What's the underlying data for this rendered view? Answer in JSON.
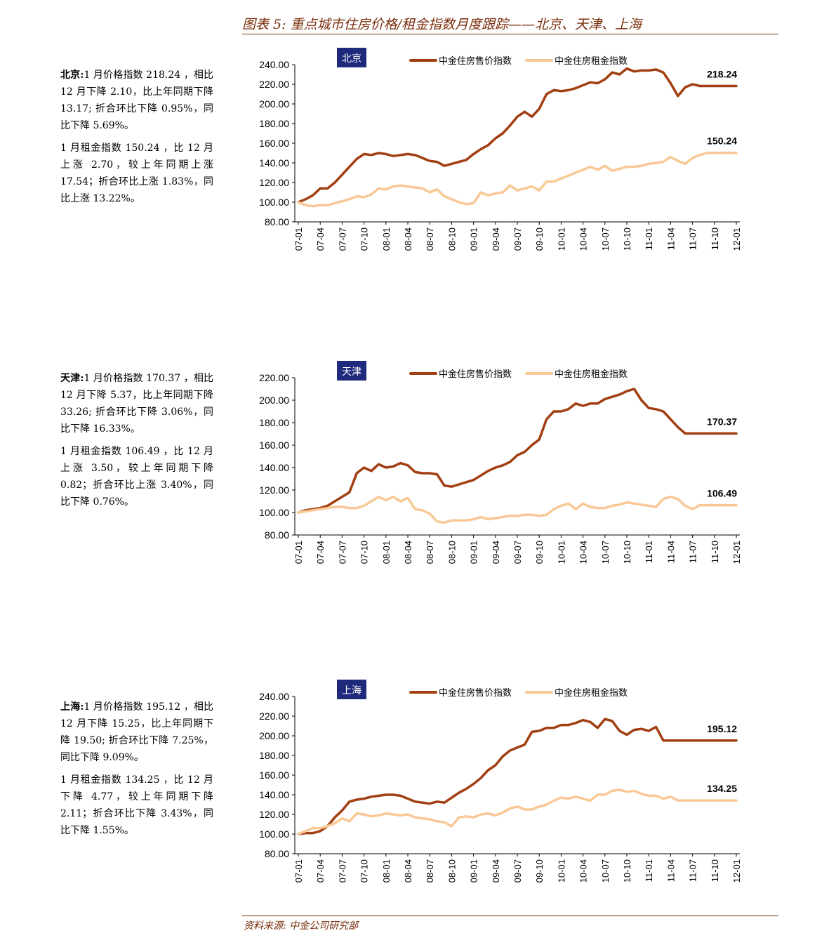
{
  "header": {
    "title": "图表 5: 重点城市住房价格/租金指数月度跟踪——北京、天津、上海"
  },
  "footer": {
    "source": "资料来源: 中金公司研究部"
  },
  "colors": {
    "price": "#a23f12",
    "rent": "#f9c896",
    "accent": "#7a2e0c",
    "badge_bg": "#1f2a7c"
  },
  "notes": [
    {
      "city_label": "北京:",
      "price_text": "1 月价格指数 218.24 ，相比 12 月下降 2.10，比上年同期下降 13.17; 折合环比下降 0.95%，同比下降 5.69%。",
      "rent_text": "1 月租金指数 150.24 ，比 12 月上涨 2.70，较上年同期上涨 17.54；折合环比上涨 1.83%，同比上涨 13.22%。"
    },
    {
      "city_label": "天津:",
      "price_text": "1 月价格指数 170.37 ，相比 12 月下降 5.37，比上年同期下降 33.26; 折合环比下降 3.06%，同比下降 16.33%。",
      "rent_text": "1 月租金指数 106.49 ，比 12 月上涨 3.50，较上年同期下降 0.82；折合环比上涨 3.40%，同比下降 0.76%。"
    },
    {
      "city_label": "上海:",
      "price_text": "1 月价格指数 195.12 ，相比 12 月下降 15.25，比上年同期下降 19.50; 折合环比下降 7.25%，同比下降 9.09%。",
      "rent_text": "1 月租金指数 134.25 ，比 12 月下降 4.77，较上年同期下降 2.11；折合环比下降 3.43%，同比下降 1.55%。"
    }
  ],
  "chart_data": [
    {
      "type": "line",
      "badge": "北京",
      "legend_position": "top",
      "x": [
        "07-01",
        "07-02",
        "07-03",
        "07-04",
        "07-05",
        "07-06",
        "07-07",
        "07-08",
        "07-09",
        "07-10",
        "07-11",
        "07-12",
        "08-01",
        "08-02",
        "08-03",
        "08-04",
        "08-05",
        "08-06",
        "08-07",
        "08-08",
        "08-09",
        "08-10",
        "08-11",
        "08-12",
        "09-01",
        "09-02",
        "09-03",
        "09-04",
        "09-05",
        "09-06",
        "09-07",
        "09-08",
        "09-09",
        "09-10",
        "09-11",
        "09-12",
        "10-01",
        "10-02",
        "10-03",
        "10-04",
        "10-05",
        "10-06",
        "10-07",
        "10-08",
        "10-09",
        "10-10",
        "10-11",
        "10-12",
        "11-01",
        "11-02",
        "11-03",
        "11-04",
        "11-05",
        "11-06",
        "11-07",
        "11-08",
        "11-09",
        "11-10",
        "11-11",
        "11-12",
        "12-01"
      ],
      "xticks": [
        "07-01",
        "07-04",
        "07-07",
        "07-10",
        "08-01",
        "08-04",
        "08-07",
        "08-10",
        "09-01",
        "09-04",
        "09-07",
        "09-10",
        "10-01",
        "10-04",
        "10-07",
        "10-10",
        "11-01",
        "11-04",
        "11-07",
        "11-10",
        "12-01"
      ],
      "ylim": [
        80,
        240
      ],
      "ystep": 20,
      "series": [
        {
          "name": "中金住房售价指数",
          "end_label": "218.24",
          "values": [
            100,
            103,
            107,
            114,
            114,
            120,
            128,
            136,
            144,
            149,
            148,
            150,
            149,
            147,
            148,
            149,
            148,
            145,
            142,
            141,
            137,
            139,
            141,
            143,
            149,
            154,
            158,
            165,
            170,
            178,
            187,
            192,
            187,
            195,
            210,
            214,
            213,
            214,
            216,
            219,
            222,
            221,
            225,
            232,
            230,
            236,
            233,
            234,
            234,
            235,
            232,
            221,
            208,
            217,
            220,
            218.24,
            218.24,
            218.24,
            218.24,
            218.24,
            218.24
          ]
        },
        {
          "name": "中金住房租金指数",
          "end_label": "150.24",
          "values": [
            100,
            97,
            96,
            97,
            97,
            99,
            101,
            103,
            106,
            105,
            108,
            114,
            113,
            116,
            117,
            116,
            115,
            114,
            110,
            113,
            106,
            103,
            100,
            98,
            99,
            110,
            107,
            109,
            110,
            117,
            112,
            114,
            116,
            112,
            121,
            121,
            124,
            127,
            130,
            133,
            136,
            133,
            137,
            132,
            134,
            136,
            136,
            137,
            139,
            140,
            141,
            146,
            142,
            139,
            145,
            148,
            150.24,
            150.24,
            150.24,
            150.24,
            150.24
          ]
        }
      ]
    },
    {
      "type": "line",
      "badge": "天津",
      "legend_position": "top",
      "x": [
        "07-01",
        "07-02",
        "07-03",
        "07-04",
        "07-05",
        "07-06",
        "07-07",
        "07-08",
        "07-09",
        "07-10",
        "07-11",
        "07-12",
        "08-01",
        "08-02",
        "08-03",
        "08-04",
        "08-05",
        "08-06",
        "08-07",
        "08-08",
        "08-09",
        "08-10",
        "08-11",
        "08-12",
        "09-01",
        "09-02",
        "09-03",
        "09-04",
        "09-05",
        "09-06",
        "09-07",
        "09-08",
        "09-09",
        "09-10",
        "09-11",
        "09-12",
        "10-01",
        "10-02",
        "10-03",
        "10-04",
        "10-05",
        "10-06",
        "10-07",
        "10-08",
        "10-09",
        "10-10",
        "10-11",
        "10-12",
        "11-01",
        "11-02",
        "11-03",
        "11-04",
        "11-05",
        "11-06",
        "11-07",
        "11-08",
        "11-09",
        "11-10",
        "11-11",
        "11-12",
        "12-01"
      ],
      "xticks": [
        "07-01",
        "07-04",
        "07-07",
        "07-10",
        "08-01",
        "08-04",
        "08-07",
        "08-10",
        "09-01",
        "09-04",
        "09-07",
        "09-10",
        "10-01",
        "10-04",
        "10-07",
        "10-10",
        "11-01",
        "11-04",
        "11-07",
        "11-10",
        "12-01"
      ],
      "ylim": [
        80,
        220
      ],
      "ystep": 20,
      "series": [
        {
          "name": "中金住房售价指数",
          "end_label": "170.37",
          "values": [
            100,
            102,
            103,
            104,
            106,
            110,
            114,
            118,
            135,
            140,
            137,
            143,
            140,
            141,
            144,
            142,
            136,
            135,
            135,
            134,
            124,
            123,
            125,
            127,
            129,
            133,
            137,
            140,
            142,
            145,
            151,
            154,
            160,
            165,
            183,
            190,
            190,
            192,
            197,
            195,
            197,
            197,
            201,
            203,
            205,
            208,
            210,
            200,
            193,
            192,
            190,
            183,
            176,
            170.37,
            170.37,
            170.37,
            170.37,
            170.37,
            170.37,
            170.37,
            170.37
          ]
        },
        {
          "name": "中金住房租金指数",
          "end_label": "106.49",
          "values": [
            100,
            101,
            102,
            103,
            104,
            105,
            105,
            104,
            104,
            106,
            110,
            114,
            111,
            114,
            110,
            113,
            103,
            102,
            99,
            92,
            91,
            93,
            93,
            93,
            94,
            96,
            94,
            95,
            96,
            97,
            97,
            98,
            98,
            97,
            98,
            103,
            106,
            108,
            103,
            108,
            105,
            104,
            104,
            106,
            107,
            109,
            108,
            107,
            106,
            105,
            112,
            114,
            112,
            106,
            103,
            106.49,
            106.49,
            106.49,
            106.49,
            106.49,
            106.49
          ]
        }
      ]
    },
    {
      "type": "line",
      "badge": "上海",
      "legend_position": "top",
      "x": [
        "07-01",
        "07-02",
        "07-03",
        "07-04",
        "07-05",
        "07-06",
        "07-07",
        "07-08",
        "07-09",
        "07-10",
        "07-11",
        "07-12",
        "08-01",
        "08-02",
        "08-03",
        "08-04",
        "08-05",
        "08-06",
        "08-07",
        "08-08",
        "08-09",
        "08-10",
        "08-11",
        "08-12",
        "09-01",
        "09-02",
        "09-03",
        "09-04",
        "09-05",
        "09-06",
        "09-07",
        "09-08",
        "09-09",
        "09-10",
        "09-11",
        "09-12",
        "10-01",
        "10-02",
        "10-03",
        "10-04",
        "10-05",
        "10-06",
        "10-07",
        "10-08",
        "10-09",
        "10-10",
        "10-11",
        "10-12",
        "11-01",
        "11-02",
        "11-03",
        "11-04",
        "11-05",
        "11-06",
        "11-07",
        "11-08",
        "11-09",
        "11-10",
        "11-11",
        "11-12",
        "12-01"
      ],
      "xticks": [
        "07-01",
        "07-04",
        "07-07",
        "07-10",
        "08-01",
        "08-04",
        "08-07",
        "08-10",
        "09-01",
        "09-04",
        "09-07",
        "09-10",
        "10-01",
        "10-04",
        "10-07",
        "10-10",
        "11-01",
        "11-04",
        "11-07",
        "11-10",
        "12-01"
      ],
      "ylim": [
        80,
        240
      ],
      "ystep": 20,
      "series": [
        {
          "name": "中金住房售价指数",
          "end_label": "195.12",
          "values": [
            100,
            101,
            101,
            103,
            108,
            117,
            124,
            133,
            135,
            136,
            138,
            139,
            140,
            140,
            139,
            136,
            133,
            132,
            131,
            133,
            132,
            137,
            142,
            146,
            151,
            157,
            165,
            170,
            179,
            185,
            188,
            191,
            204,
            205,
            208,
            208,
            211,
            211,
            213,
            216,
            214,
            208,
            217,
            215,
            205,
            201,
            206,
            207,
            205,
            209,
            195.12,
            195.12,
            195.12,
            195.12,
            195.12,
            195.12,
            195.12,
            195.12,
            195.12,
            195.12,
            195.12
          ]
        },
        {
          "name": "中金住房租金指数",
          "end_label": "134.25",
          "values": [
            100,
            103,
            106,
            106,
            108,
            111,
            116,
            113,
            121,
            120,
            118,
            119,
            121,
            120,
            119,
            120,
            117,
            116,
            115,
            113,
            112,
            108,
            117,
            118,
            117,
            120,
            121,
            119,
            122,
            126,
            128,
            125,
            125,
            128,
            130,
            134,
            137,
            136,
            138,
            136,
            134,
            140,
            140,
            144,
            145,
            143,
            144,
            141,
            139,
            139,
            136,
            138,
            134.25,
            134.25,
            134.25,
            134.25,
            134.25,
            134.25,
            134.25,
            134.25,
            134.25
          ]
        }
      ]
    }
  ]
}
